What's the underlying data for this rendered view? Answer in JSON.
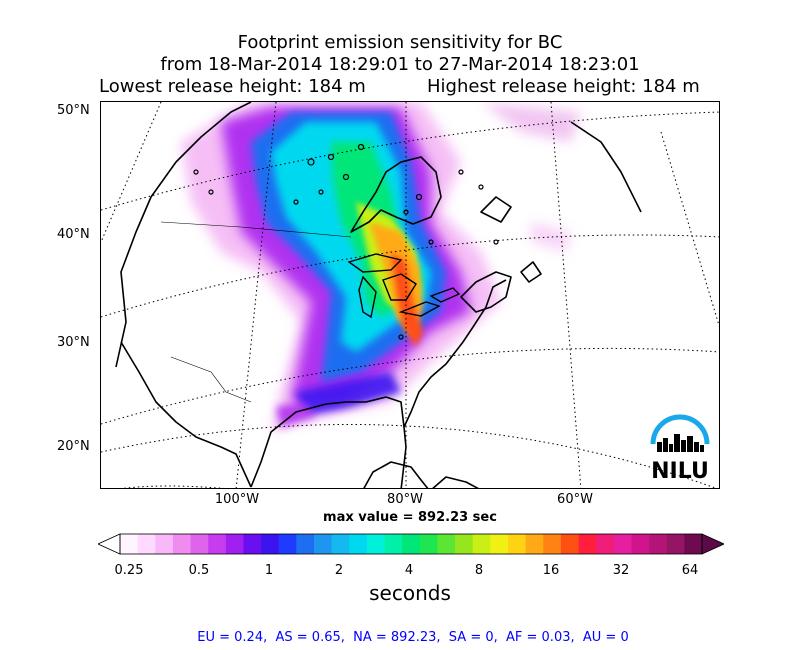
{
  "title": {
    "line1": "Footprint emission sensitivity for BC",
    "line2": "from 18-Mar-2014 18:29:01 to 27-Mar-2014 18:23:01",
    "lowest_release": "Lowest release height: 184 m",
    "highest_release": "Highest release height: 184 m"
  },
  "map": {
    "lat_labels": [
      "50°N",
      "40°N",
      "30°N",
      "20°N"
    ],
    "lon_labels": [
      "100°W",
      "80°W",
      "60°W"
    ],
    "logo_text": "NILU",
    "logo_color": "#1aa9e8"
  },
  "max_value": "max value = 892.23 sec",
  "colorbar": {
    "units": "seconds",
    "ticks": [
      "0.25",
      "0.5",
      "1",
      "2",
      "4",
      "8",
      "16",
      "32",
      "64"
    ],
    "colors": [
      "#fff5ff",
      "#ffd9ff",
      "#f9b8f9",
      "#f08cf0",
      "#e063ec",
      "#c83cf0",
      "#a020f0",
      "#6a10f0",
      "#3c14f0",
      "#1e3cff",
      "#1e6ef0",
      "#1e96f0",
      "#14b9f0",
      "#00d8f0",
      "#00f0dc",
      "#00f0aa",
      "#00e678",
      "#1ee650",
      "#5ae632",
      "#96e61e",
      "#c8f014",
      "#f0f014",
      "#ffd214",
      "#ffaa14",
      "#ff8214",
      "#ff5014",
      "#ff1e3c",
      "#f01e78",
      "#e61ea0",
      "#d2148c",
      "#b41478",
      "#961464",
      "#6e0a50"
    ],
    "under_color": "#ffffff",
    "over_color": "#5a0a46"
  },
  "region_summary": {
    "EU": "0.24",
    "AS": "0.65",
    "NA": "892.23",
    "SA": "0",
    "AF": "0.03",
    "AU": "0",
    "text": "EU = 0.24,  AS = 0.65,  NA = 892.23,  SA = 0,  AF = 0.03,  AU = 0"
  }
}
